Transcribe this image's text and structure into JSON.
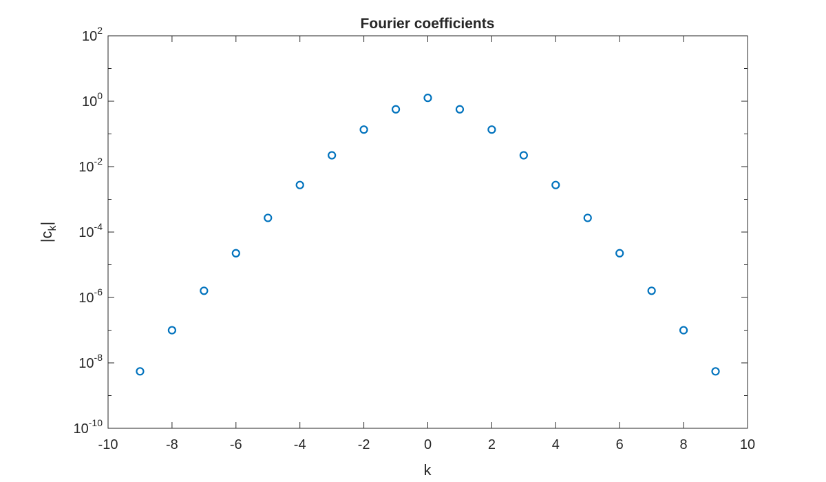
{
  "chart_data": {
    "type": "scatter",
    "title": "Fourier coefficients",
    "xlabel": "k",
    "ylabel": "|c_k|",
    "ylabel_base": "|c",
    "ylabel_sub": "k",
    "ylabel_end": "|",
    "xlim": [
      -10,
      10
    ],
    "ylim": [
      1e-10,
      100
    ],
    "yscale": "log",
    "grid": false,
    "marker": "circle",
    "color": "#0072BD",
    "x_ticks": [
      "-10",
      "-8",
      "-6",
      "-4",
      "-2",
      "0",
      "2",
      "4",
      "6",
      "8",
      "10"
    ],
    "y_tick_exponents": [
      "2",
      "0",
      "-2",
      "-4",
      "-6",
      "-8",
      "-10"
    ],
    "x": [
      -9,
      -8,
      -7,
      -6,
      -5,
      -4,
      -3,
      -2,
      -1,
      0,
      1,
      2,
      3,
      4,
      5,
      6,
      7,
      8,
      9
    ],
    "y": [
      5.5e-09,
      9.96e-08,
      1.6e-06,
      2.25e-05,
      0.000271,
      0.00274,
      0.0222,
      0.1357,
      0.565,
      1.266,
      0.565,
      0.1357,
      0.0222,
      0.00274,
      0.000271,
      2.25e-05,
      1.6e-06,
      9.96e-08,
      5.5e-09
    ]
  }
}
